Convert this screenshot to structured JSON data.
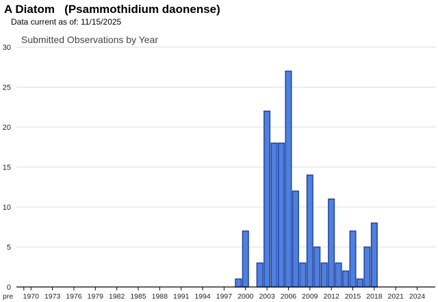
{
  "header": {
    "title": "A Diatom   (Psammothidium daonense)",
    "data_current": "Data current as of: 11/15/2025"
  },
  "chart_data": {
    "type": "bar",
    "title": "Submitted Observations by Year",
    "xlabel": "",
    "ylabel": "",
    "ylim": [
      0,
      30
    ],
    "yticks": [
      0,
      5,
      10,
      15,
      20,
      25,
      30
    ],
    "grid": true,
    "bar_color": "#4f7fdf",
    "bar_edge_color": "#1c3f94",
    "categories": [
      "pre 1970",
      "1970",
      "1971",
      "1972",
      "1973",
      "1974",
      "1975",
      "1976",
      "1977",
      "1978",
      "1979",
      "1980",
      "1981",
      "1982",
      "1983",
      "1984",
      "1985",
      "1986",
      "1987",
      "1988",
      "1989",
      "1990",
      "1991",
      "1992",
      "1993",
      "1994",
      "1995",
      "1996",
      "1997",
      "1998",
      "1999",
      "2000",
      "2001",
      "2002",
      "2003",
      "2004",
      "2005",
      "2006",
      "2007",
      "2008",
      "2009",
      "2010",
      "2011",
      "2012",
      "2013",
      "2014",
      "2015",
      "2016",
      "2017",
      "2018",
      "2019",
      "2020",
      "2021",
      "2022",
      "2023",
      "2024",
      "2025"
    ],
    "tick_labels": [
      "pre",
      "1970",
      "1973",
      "1976",
      "1979",
      "1982",
      "1985",
      "1988",
      "1991",
      "1994",
      "1997",
      "2000",
      "2003",
      "2006",
      "2009",
      "2012",
      "2015",
      "2018",
      "2021",
      "2024"
    ],
    "values": [
      0,
      0,
      0,
      0,
      0,
      0,
      0,
      0,
      0,
      0,
      0,
      0,
      0,
      0,
      0,
      0,
      0,
      0,
      0,
      0,
      0,
      0,
      0,
      0,
      0,
      0,
      0,
      0,
      0,
      0,
      1,
      7,
      0,
      3,
      22,
      18,
      18,
      27,
      12,
      3,
      14,
      5,
      3,
      11,
      3,
      2,
      7,
      1,
      5,
      8,
      0,
      0,
      0,
      0,
      0,
      0,
      0
    ]
  }
}
